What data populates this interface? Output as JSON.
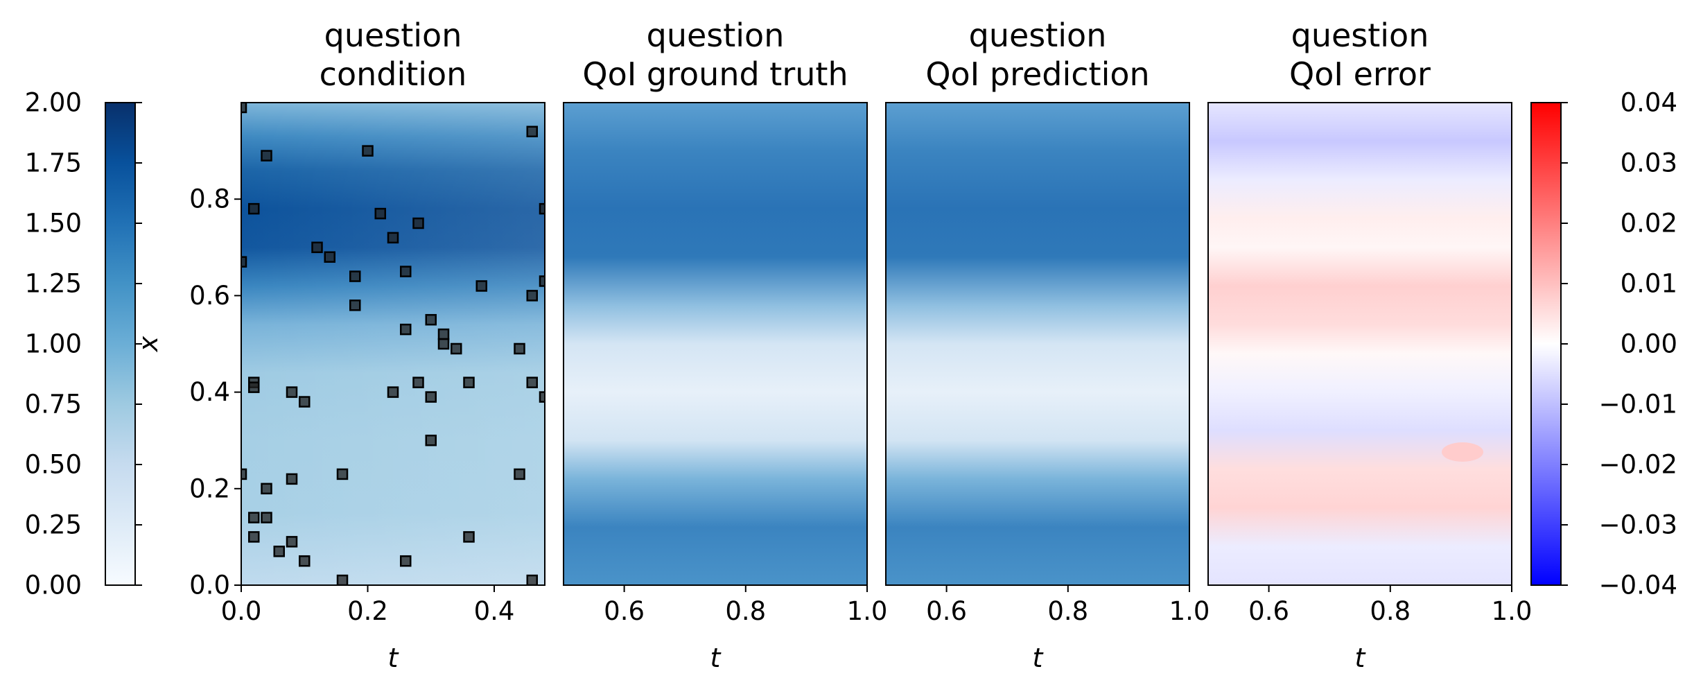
{
  "chart_data": [
    {
      "type": "heatmap",
      "title": [
        "question",
        "condition"
      ],
      "xlabel": "t",
      "ylabel": "x",
      "xlim": [
        0.0,
        0.48
      ],
      "ylim": [
        0.0,
        1.0
      ],
      "xticks": [
        "0.0",
        "0.2",
        "0.4"
      ],
      "yticks": [
        "0.0",
        "0.2",
        "0.4",
        "0.6",
        "0.8"
      ],
      "colormap": "Blues",
      "color_range": [
        0.0,
        2.0
      ],
      "field_profile_x": [
        0.0,
        0.05,
        0.1,
        0.15,
        0.2,
        0.25,
        0.3,
        0.35,
        0.4,
        0.45,
        0.5,
        0.55,
        0.6,
        0.65,
        0.7,
        0.75,
        0.8,
        0.85,
        0.9,
        0.95,
        1.0
      ],
      "field_profile_value": [
        0.8,
        0.78,
        0.72,
        0.7,
        0.66,
        0.62,
        0.6,
        0.58,
        0.55,
        0.52,
        0.6,
        0.8,
        1.2,
        1.55,
        1.78,
        1.8,
        1.72,
        1.55,
        1.3,
        1.0,
        0.8
      ],
      "sensor_points": {
        "t": [
          0.0,
          0.0,
          0.0,
          0.02,
          0.02,
          0.02,
          0.02,
          0.02,
          0.04,
          0.04,
          0.04,
          0.06,
          0.08,
          0.08,
          0.08,
          0.1,
          0.1,
          0.12,
          0.14,
          0.16,
          0.16,
          0.18,
          0.18,
          0.2,
          0.22,
          0.24,
          0.24,
          0.26,
          0.26,
          0.26,
          0.28,
          0.28,
          0.3,
          0.3,
          0.3,
          0.32,
          0.32,
          0.34,
          0.36,
          0.36,
          0.38,
          0.44,
          0.44,
          0.46,
          0.46,
          0.46,
          0.46,
          0.48,
          0.48,
          0.48
        ],
        "x": [
          0.99,
          0.67,
          0.23,
          0.78,
          0.42,
          0.41,
          0.14,
          0.1,
          0.89,
          0.2,
          0.14,
          0.07,
          0.4,
          0.22,
          0.09,
          0.38,
          0.05,
          0.7,
          0.68,
          0.23,
          0.01,
          0.64,
          0.58,
          0.9,
          0.77,
          0.72,
          0.4,
          0.65,
          0.53,
          0.05,
          0.75,
          0.42,
          0.55,
          0.39,
          0.3,
          0.52,
          0.5,
          0.49,
          0.42,
          0.1,
          0.62,
          0.49,
          0.23,
          0.94,
          0.6,
          0.42,
          0.01,
          0.78,
          0.63,
          0.39
        ]
      }
    },
    {
      "type": "heatmap",
      "title": [
        "question",
        "QoI ground truth"
      ],
      "xlabel": "t",
      "xlim": [
        0.5,
        1.0
      ],
      "ylim": [
        0.0,
        1.0
      ],
      "xticks": [
        "0.6",
        "0.8",
        "1.0"
      ],
      "colormap": "Blues",
      "color_range": [
        0.0,
        2.0
      ]
    },
    {
      "type": "heatmap",
      "title": [
        "question",
        "QoI prediction"
      ],
      "xlabel": "t",
      "xlim": [
        0.5,
        1.0
      ],
      "ylim": [
        0.0,
        1.0
      ],
      "xticks": [
        "0.6",
        "0.8",
        "1.0"
      ],
      "colormap": "Blues",
      "color_range": [
        0.0,
        2.0
      ]
    },
    {
      "type": "heatmap",
      "title": [
        "question",
        "QoI error"
      ],
      "xlabel": "t",
      "xlim": [
        0.5,
        1.0
      ],
      "ylim": [
        0.0,
        1.0
      ],
      "xticks": [
        "0.6",
        "0.8",
        "1.0"
      ],
      "colormap": "bwr",
      "color_range": [
        -0.04,
        0.04
      ]
    }
  ],
  "colorbars": {
    "left": {
      "colormap": "Blues",
      "range": [
        0.0,
        2.0
      ],
      "ticks": [
        "0.00",
        "0.25",
        "0.50",
        "0.75",
        "1.00",
        "1.25",
        "1.50",
        "1.75",
        "2.00"
      ]
    },
    "right": {
      "colormap": "bwr",
      "range": [
        -0.04,
        0.04
      ],
      "ticks": [
        "−0.04",
        "−0.03",
        "−0.02",
        "−0.01",
        "0.00",
        "0.01",
        "0.02",
        "0.03",
        "0.04"
      ]
    }
  },
  "colors": {
    "blues": [
      "#f7fbff",
      "#deebf7",
      "#c6dbef",
      "#9ecae1",
      "#6baed6",
      "#4292c6",
      "#2171b5",
      "#08519c",
      "#08306b"
    ],
    "bwr": [
      "#0000ff",
      "#ffffff",
      "#ff0000"
    ],
    "marker": "#222222"
  }
}
